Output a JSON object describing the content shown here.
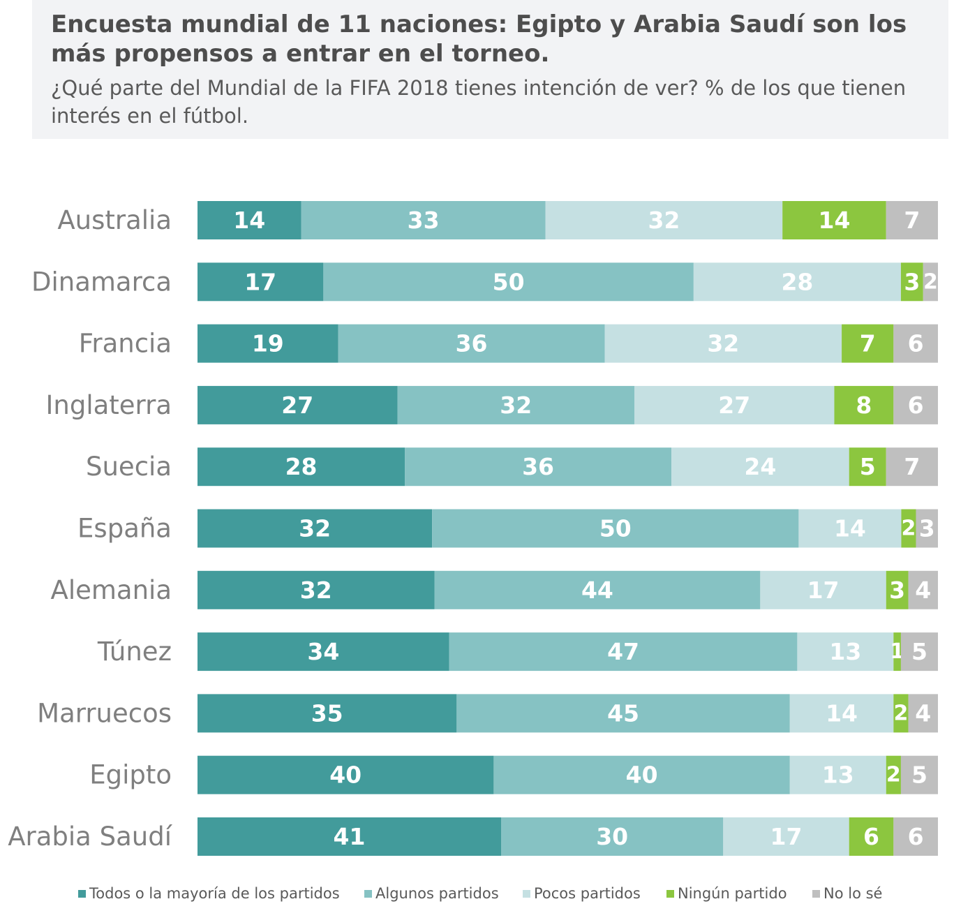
{
  "header": {
    "title": "Encuesta mundial de 11 naciones: Egipto y Arabia Saudí son los más propensos a entrar en el torneo.",
    "subtitle": "¿Qué parte del Mundial de la FIFA 2018 tienes intención de ver? % de los que tienen interés en el fútbol."
  },
  "colors": {
    "header_bg": "#f2f3f5",
    "series": [
      "#429b9b",
      "#86c2c3",
      "#c5e0e2",
      "#8cc63f",
      "#bfbfbf"
    ],
    "label_text": "#ffffff",
    "category_text": "#7f7f7f"
  },
  "chart_data": {
    "type": "bar",
    "orientation": "horizontal",
    "stacked": true,
    "categories": [
      "Australia",
      "Dinamarca",
      "Francia",
      "Inglaterra",
      "Suecia",
      "España",
      "Alemania",
      "Túnez",
      "Marruecos",
      "Egipto",
      "Arabia Saudí"
    ],
    "series": [
      {
        "name": "Todos o la mayoría de los partidos",
        "values": [
          14,
          17,
          19,
          27,
          28,
          32,
          32,
          34,
          35,
          40,
          41
        ]
      },
      {
        "name": "Algunos partidos",
        "values": [
          33,
          50,
          36,
          32,
          36,
          50,
          44,
          47,
          45,
          40,
          30
        ]
      },
      {
        "name": "Pocos partidos",
        "values": [
          32,
          28,
          32,
          27,
          24,
          14,
          17,
          13,
          14,
          13,
          17
        ]
      },
      {
        "name": "Ningún partido",
        "values": [
          14,
          3,
          7,
          8,
          5,
          2,
          3,
          1,
          2,
          2,
          6
        ]
      },
      {
        "name": "No lo sé",
        "values": [
          7,
          2,
          6,
          6,
          7,
          3,
          4,
          5,
          4,
          5,
          6
        ]
      }
    ],
    "xlim": [
      0,
      100
    ],
    "data_labels": true,
    "grid": false,
    "legend_position": "bottom"
  }
}
